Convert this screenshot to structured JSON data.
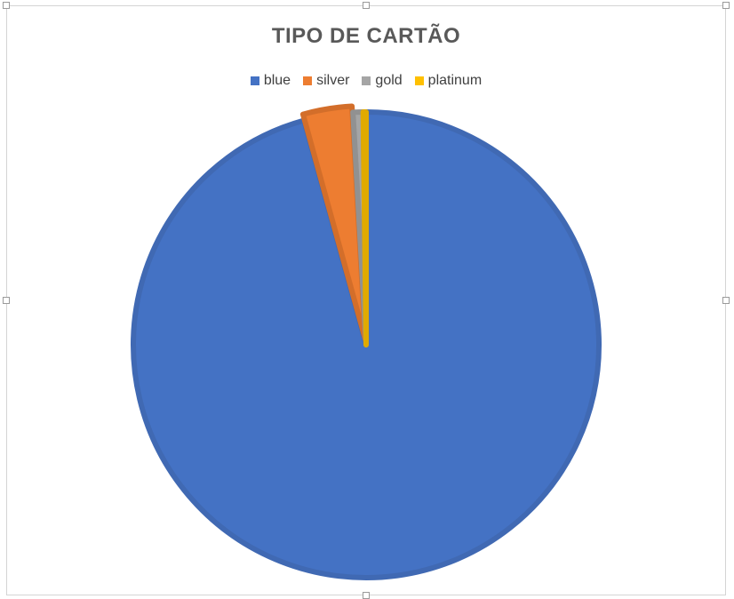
{
  "chart_data": {
    "type": "pie",
    "title": "TIPO DE CARTÃO",
    "legend_position": "top",
    "categories": [
      "blue",
      "silver",
      "gold",
      "platinum"
    ],
    "values": [
      95.7,
      3.4,
      0.7,
      0.2
    ],
    "colors": [
      "#4472C4",
      "#ED7D31",
      "#A5A5A5",
      "#FFC000"
    ],
    "border_colors": [
      "#4069B3",
      "#D36E2A",
      "#919191",
      "#E0AA00"
    ]
  }
}
